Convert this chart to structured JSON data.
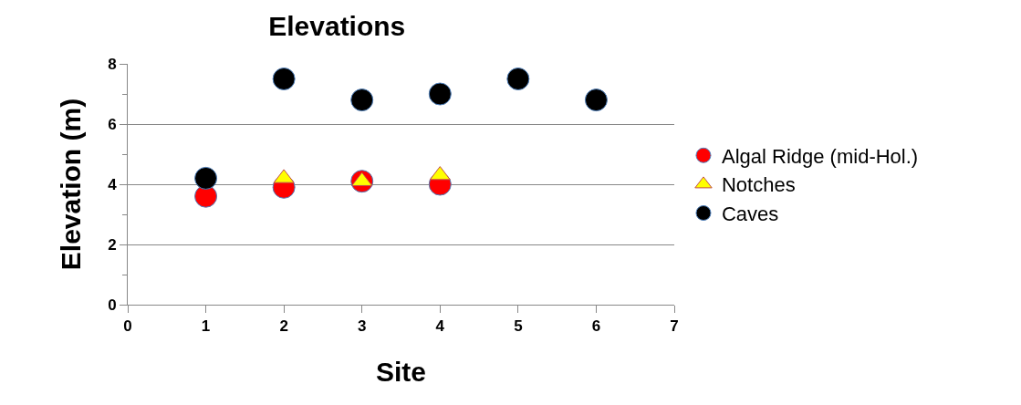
{
  "chart_data": {
    "type": "scatter",
    "title": "Elevations",
    "xlabel": "Site",
    "ylabel": "Elevation (m)",
    "xlim": [
      0,
      7
    ],
    "xticks": [
      0,
      1,
      2,
      3,
      4,
      5,
      6,
      7
    ],
    "ylim": [
      0,
      8
    ],
    "yticks": [
      0,
      2,
      4,
      6,
      8
    ],
    "grid": "y",
    "legend": "right",
    "series": [
      {
        "name": "Algal Ridge (mid-Hol.)",
        "color": "#ff0000",
        "marker": "circle",
        "x": [
          1,
          2,
          3,
          4
        ],
        "values": [
          3.6,
          3.9,
          4.1,
          4.0
        ]
      },
      {
        "name": "Notches",
        "color": "#ffff00",
        "marker": "triangle",
        "x": [
          2,
          3,
          4
        ],
        "values": [
          4.2,
          4.1,
          4.3
        ]
      },
      {
        "name": "Caves",
        "color": "#000000",
        "marker": "circle",
        "x": [
          1,
          2,
          3,
          4,
          5,
          6
        ],
        "values": [
          4.2,
          7.5,
          6.8,
          7.0,
          7.5,
          6.8
        ]
      }
    ]
  }
}
